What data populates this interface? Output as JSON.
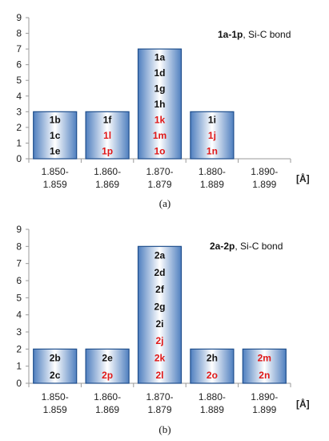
{
  "chart_data": [
    {
      "type": "bar",
      "caption": "(a)",
      "annotation_bold": "1a-1p",
      "annotation_rest": ", Si-C bond",
      "unit_label": "[Å]",
      "categories": [
        [
          "1.850-",
          "1.859"
        ],
        [
          "1.860-",
          "1.869"
        ],
        [
          "1.870-",
          "1.879"
        ],
        [
          "1.880-",
          "1.889"
        ],
        [
          "1.890-",
          "1.899"
        ]
      ],
      "values": [
        3,
        3,
        7,
        3,
        0
      ],
      "ylim": [
        0,
        9
      ],
      "yticks": [
        0,
        1,
        2,
        3,
        4,
        5,
        6,
        7,
        8,
        9
      ],
      "grid": false,
      "bar_labels": [
        [
          {
            "t": "1b",
            "c": "#111111"
          },
          {
            "t": "1c",
            "c": "#111111"
          },
          {
            "t": "1e",
            "c": "#111111"
          }
        ],
        [
          {
            "t": "1f",
            "c": "#111111"
          },
          {
            "t": "1l",
            "c": "#e01818"
          },
          {
            "t": "1p",
            "c": "#e01818"
          }
        ],
        [
          {
            "t": "1a",
            "c": "#111111"
          },
          {
            "t": "1d",
            "c": "#111111"
          },
          {
            "t": "1g",
            "c": "#111111"
          },
          {
            "t": "1h",
            "c": "#111111"
          },
          {
            "t": "1k",
            "c": "#e01818"
          },
          {
            "t": "1m",
            "c": "#e01818"
          },
          {
            "t": "1o",
            "c": "#e01818"
          }
        ],
        [
          {
            "t": "1i",
            "c": "#111111"
          },
          {
            "t": "1j",
            "c": "#e01818"
          },
          {
            "t": "1n",
            "c": "#e01818"
          }
        ],
        []
      ]
    },
    {
      "type": "bar",
      "caption": "(b)",
      "annotation_bold": "2a-2p",
      "annotation_rest": ", Si-C bond",
      "unit_label": "[Å]",
      "categories": [
        [
          "1.850-",
          "1.859"
        ],
        [
          "1.860-",
          "1.869"
        ],
        [
          "1.870-",
          "1.879"
        ],
        [
          "1.880-",
          "1.889"
        ],
        [
          "1.890-",
          "1.899"
        ]
      ],
      "values": [
        2,
        2,
        8,
        2,
        2
      ],
      "ylim": [
        0,
        9
      ],
      "yticks": [
        0,
        1,
        2,
        3,
        4,
        5,
        6,
        7,
        8,
        9
      ],
      "grid": false,
      "bar_labels": [
        [
          {
            "t": "2b",
            "c": "#111111"
          },
          {
            "t": "2c",
            "c": "#111111"
          }
        ],
        [
          {
            "t": "2e",
            "c": "#111111"
          },
          {
            "t": "2p",
            "c": "#e01818"
          }
        ],
        [
          {
            "t": "2a",
            "c": "#111111"
          },
          {
            "t": "2d",
            "c": "#111111"
          },
          {
            "t": "2f",
            "c": "#111111"
          },
          {
            "t": "2g",
            "c": "#111111"
          },
          {
            "t": "2i",
            "c": "#111111"
          },
          {
            "t": "2j",
            "c": "#e01818"
          },
          {
            "t": "2k",
            "c": "#e01818"
          },
          {
            "t": "2l",
            "c": "#e01818"
          }
        ],
        [
          {
            "t": "2h",
            "c": "#111111"
          },
          {
            "t": "2o",
            "c": "#e01818"
          }
        ],
        [
          {
            "t": "2m",
            "c": "#e01818"
          },
          {
            "t": "2n",
            "c": "#e01818"
          }
        ]
      ]
    }
  ],
  "colors": {
    "bar_edge": "#1f4e8c",
    "bar_center": "#ffffff",
    "bar_side": "#4f7fbf",
    "axis": "#9a9a9a"
  }
}
